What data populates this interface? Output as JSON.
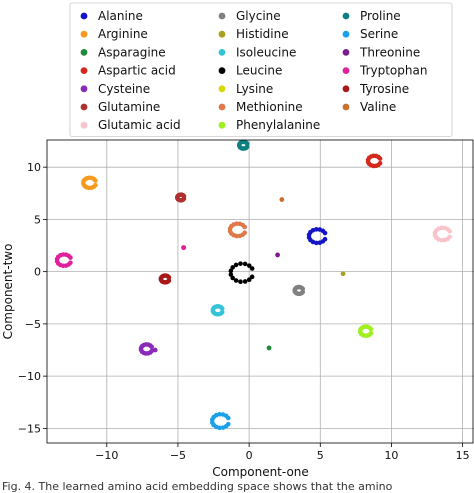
{
  "chart_data": {
    "type": "scatter",
    "title": "",
    "xlabel": "Component-one",
    "ylabel": "Component-two",
    "xlim": [
      -14.2,
      15.8
    ],
    "ylim": [
      -16.4,
      12.6
    ],
    "xticks": [
      -10,
      -5,
      0,
      5,
      10,
      15
    ],
    "yticks": [
      -15,
      -10,
      -5,
      0,
      5,
      10
    ],
    "grid": true,
    "legend": {
      "placement": "top-center",
      "columns": 3
    },
    "series": [
      {
        "name": "Alanine",
        "color": "#1414c8",
        "x": 4.8,
        "y": 3.4,
        "shape": "ring",
        "r": 0.6
      },
      {
        "name": "Arginine",
        "color": "#f59a1c",
        "x": -11.2,
        "y": 8.5,
        "shape": "ring",
        "r": 0.45
      },
      {
        "name": "Asparagine",
        "color": "#1f8a3a",
        "x": 1.4,
        "y": -7.3,
        "shape": "point",
        "r": 0
      },
      {
        "name": "Aspartic acid",
        "color": "#d42a1e",
        "x": 8.8,
        "y": 10.6,
        "shape": "ring",
        "r": 0.45
      },
      {
        "name": "Cysteine",
        "color": "#8a2ab8",
        "x": -7.2,
        "y": -7.4,
        "shape": "ring",
        "r": 0.4
      },
      {
        "name": "Glutamine",
        "color": "#b03030",
        "x": -4.8,
        "y": 7.1,
        "shape": "ring",
        "r": 0.25
      },
      {
        "name": "Glutamic acid",
        "color": "#f7c4cc",
        "x": 13.6,
        "y": 3.6,
        "shape": "ring",
        "r": 0.55
      },
      {
        "name": "Glycine",
        "color": "#808080",
        "x": 3.5,
        "y": -1.8,
        "shape": "ring",
        "r": 0.3
      },
      {
        "name": "Histidine",
        "color": "#a8a020",
        "x": 6.6,
        "y": -0.2,
        "shape": "point",
        "r": 0
      },
      {
        "name": "Isoleucine",
        "color": "#34c4d8",
        "x": -2.2,
        "y": -3.7,
        "shape": "ring",
        "r": 0.35
      },
      {
        "name": "Leucine",
        "color": "#000000",
        "x": -0.5,
        "y": -0.1,
        "shape": "ring",
        "r": 0.8
      },
      {
        "name": "Lysine",
        "color": "#d8d800",
        "x": 0.0,
        "y": 0.0,
        "shape": "none",
        "r": 0
      },
      {
        "name": "Methionine",
        "color": "#e07848",
        "x": -0.8,
        "y": 4.0,
        "shape": "ring",
        "r": 0.55
      },
      {
        "name": "Phenylalanine",
        "color": "#a0f020",
        "x": 8.2,
        "y": -5.7,
        "shape": "ring",
        "r": 0.4
      },
      {
        "name": "Proline",
        "color": "#0e8080",
        "x": -0.4,
        "y": 12.1,
        "shape": "ring",
        "r": 0.3
      },
      {
        "name": "Serine",
        "color": "#1aa0e8",
        "x": -2.0,
        "y": -14.3,
        "shape": "ring",
        "r": 0.6
      },
      {
        "name": "Threonine",
        "color": "#7a1a8c",
        "x": 2.0,
        "y": 1.6,
        "shape": "point",
        "r": 0
      },
      {
        "name": "Tryptophan",
        "color": "#e0209c",
        "x": -13.0,
        "y": 1.1,
        "shape": "ring",
        "r": 0.5
      },
      {
        "name": "Tyrosine",
        "color": "#a81818",
        "x": -5.9,
        "y": -0.7,
        "shape": "ring",
        "r": 0.3
      },
      {
        "name": "Valine",
        "color": "#c8702c",
        "x": 2.3,
        "y": 6.9,
        "shape": "point",
        "r": 0
      }
    ],
    "extra_points": [
      {
        "series": "Glutamine",
        "x": -4.6,
        "y": 2.3
      },
      {
        "series": "Tryptophan",
        "x": -4.6,
        "y": 2.3
      },
      {
        "series": "Cysteine",
        "x": -6.6,
        "y": -7.5
      }
    ]
  },
  "caption": "Fig. 4. The learned amino acid embedding space shows that the amino"
}
